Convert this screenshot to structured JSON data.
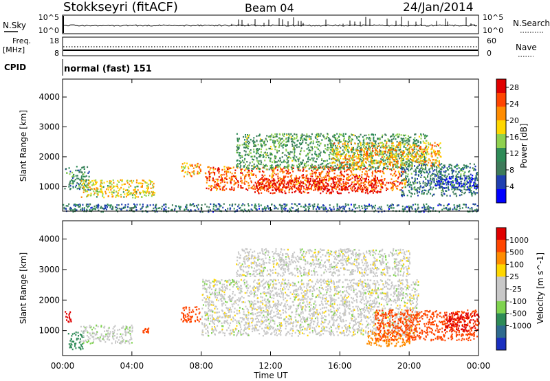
{
  "header": {
    "station": "Stokkseyri (fitACF)",
    "beam": "Beam 04",
    "date": "24/Jan/2014"
  },
  "strip_labels": {
    "nsky": "N.Sky",
    "nsky_ticks": [
      "10^5",
      "10^0"
    ],
    "nsearch": "N.Search",
    "nsearch_ticks": [
      "10^5",
      "10^0"
    ],
    "freq": "Freq.",
    "freq_unit": "[MHz]",
    "freq_ticks": [
      "18",
      "8"
    ],
    "nave": "Nave",
    "nave_ticks": [
      "60",
      "0"
    ],
    "cpid": "CPID",
    "cpid_value": "normal (fast) 151"
  },
  "colors": {
    "power_scale": [
      "#0000ff",
      "#1f3fb0",
      "#3d7a5a",
      "#2e8b57",
      "#8fd14f",
      "#ffd700",
      "#ff8c00",
      "#ff4500",
      "#e00000"
    ],
    "velocity_scale": [
      "#1a2fbf",
      "#2e6a8e",
      "#2e8b57",
      "#7fd34f",
      "#c8c8c8",
      "#c8c8c8",
      "#ffd700",
      "#ff8c00",
      "#ff4500",
      "#e00000"
    ]
  },
  "chart_data": [
    {
      "type": "heatmap",
      "title": "",
      "xlabel": "Time UT",
      "ylabel": "Slant Range [km]",
      "x_ticks": [
        "00:00",
        "04:00",
        "08:00",
        "12:00",
        "16:00",
        "20:00",
        "00:00"
      ],
      "y_ticks": [
        1000,
        2000,
        3000,
        4000
      ],
      "ylim": [
        180,
        4600
      ],
      "xlim_hours": [
        0,
        24
      ],
      "colorbar": {
        "label": "Power [dB]",
        "ticks": [
          4,
          8,
          12,
          16,
          20,
          24,
          28
        ],
        "range": [
          0,
          30
        ]
      },
      "regions": [
        {
          "t0": 0.1,
          "t1": 1.5,
          "r0": 900,
          "r1": 1700,
          "level": 10
        },
        {
          "t0": 1.0,
          "t1": 5.3,
          "r0": 650,
          "r1": 1250,
          "level": 18
        },
        {
          "t0": 6.8,
          "t1": 8.0,
          "r0": 1350,
          "r1": 1850,
          "level": 20
        },
        {
          "t0": 8.2,
          "t1": 19.8,
          "r0": 900,
          "r1": 1700,
          "level": 24
        },
        {
          "t0": 11.0,
          "t1": 18.5,
          "r0": 800,
          "r1": 1300,
          "level": 28
        },
        {
          "t0": 10.0,
          "t1": 21.0,
          "r0": 1600,
          "r1": 2800,
          "level": 12
        },
        {
          "t0": 15.5,
          "t1": 21.8,
          "r0": 1700,
          "r1": 2500,
          "level": 20
        },
        {
          "t0": 19.5,
          "t1": 23.9,
          "r0": 700,
          "r1": 1800,
          "level": 9
        },
        {
          "t0": 21.5,
          "t1": 23.9,
          "r0": 900,
          "r1": 1400,
          "level": 4
        },
        {
          "t0": 0.0,
          "t1": 24.0,
          "r0": 180,
          "r1": 450,
          "level": 8
        }
      ]
    },
    {
      "type": "heatmap",
      "title": "",
      "xlabel": "Time UT",
      "ylabel": "Slant Range [km]",
      "x_ticks": [
        "00:00",
        "04:00",
        "08:00",
        "12:00",
        "16:00",
        "20:00",
        "00:00"
      ],
      "y_ticks": [
        1000,
        2000,
        3000,
        4000
      ],
      "ylim": [
        180,
        4600
      ],
      "xlim_hours": [
        0,
        24
      ],
      "colorbar": {
        "label": "Velocity [m s^-1]",
        "ticks": [
          1000,
          500,
          100,
          25,
          -25,
          -100,
          -500,
          -1000
        ],
        "range": [
          -1200,
          1200
        ]
      },
      "regions": [
        {
          "t0": 0.1,
          "t1": 0.5,
          "r0": 1300,
          "r1": 1700,
          "level": -1000
        },
        {
          "t0": 0.3,
          "t1": 1.2,
          "r0": 400,
          "r1": 1000,
          "level": 100
        },
        {
          "t0": 1.0,
          "t1": 4.0,
          "r0": 600,
          "r1": 1200,
          "level": 10
        },
        {
          "t0": 4.6,
          "t1": 5.0,
          "r0": 950,
          "r1": 1100,
          "level": -500
        },
        {
          "t0": 6.8,
          "t1": 8.0,
          "r0": 1300,
          "r1": 1800,
          "level": -500
        },
        {
          "t0": 8.0,
          "t1": 20.5,
          "r0": 850,
          "r1": 2700,
          "level": 0
        },
        {
          "t0": 10.0,
          "t1": 20.0,
          "r0": 2800,
          "r1": 3700,
          "level": 0
        },
        {
          "t0": 17.5,
          "t1": 20.0,
          "r0": 500,
          "r1": 1000,
          "level": -100
        },
        {
          "t0": 18.0,
          "t1": 24.0,
          "r0": 700,
          "r1": 1700,
          "level": -500
        },
        {
          "t0": 22.0,
          "t1": 24.0,
          "r0": 1000,
          "r1": 1600,
          "level": -1000
        }
      ]
    }
  ]
}
